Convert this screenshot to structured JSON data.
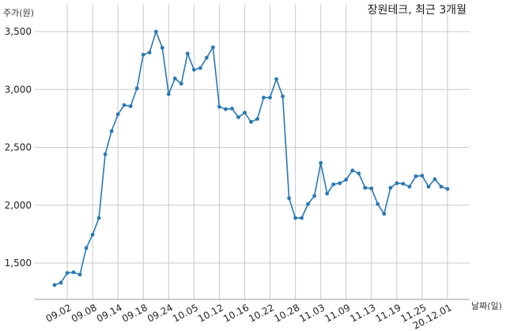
{
  "chart_data": {
    "type": "line",
    "title": "장원테크, 최근 3개월",
    "ylabel": "주가(원)",
    "xlabel": "날짜(일)",
    "ylim": [
      1200,
      3550
    ],
    "yticks": [
      1500,
      2000,
      2500,
      3000,
      3500
    ],
    "ytick_labels": [
      "1,500",
      "2,000",
      "2,500",
      "3,000",
      "3,500"
    ],
    "xtick_labels": [
      "09.02",
      "09.08",
      "09.14",
      "09.18",
      "09.24",
      "10.05",
      "10.12",
      "10.16",
      "10.22",
      "10.28",
      "11.03",
      "11.09",
      "11.13",
      "11.19",
      "11.25",
      "20.12.01"
    ],
    "xtick_index": [
      2,
      6,
      10,
      14,
      18,
      22,
      26,
      30,
      34,
      38,
      42,
      46,
      50,
      54,
      58,
      62
    ],
    "grid": true,
    "line_color": "#2878b4",
    "series": [
      {
        "values": [
          1310,
          1330,
          1415,
          1420,
          1400,
          1630,
          1745,
          1890,
          2440,
          2640,
          2785,
          2865,
          2855,
          3010,
          3300,
          3320,
          3500,
          3360,
          2960,
          3095,
          3050,
          3310,
          3170,
          3185,
          3275,
          3365,
          2850,
          2830,
          2835,
          2760,
          2800,
          2720,
          2745,
          2930,
          2930,
          3090,
          2940,
          2060,
          1890,
          1890,
          2010,
          2080,
          2365,
          2100,
          2180,
          2190,
          2220,
          2300,
          2275,
          2150,
          2145,
          2010,
          1925,
          2150,
          2190,
          2185,
          2160,
          2250,
          2255,
          2160,
          2225,
          2160,
          2140
        ]
      }
    ]
  }
}
